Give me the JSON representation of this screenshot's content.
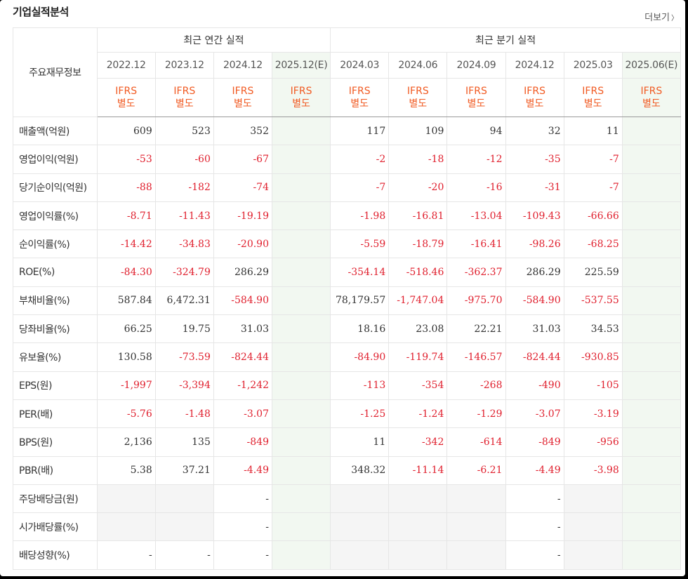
{
  "title": "기업실적분석",
  "more": {
    "label": "더보기",
    "chevron": "〉"
  },
  "table": {
    "row_header_label": "주요재무정보",
    "group_annual": "최근 연간 실적",
    "group_quarter": "최근 분기 실적",
    "periods": [
      "2022.12",
      "2023.12",
      "2024.12",
      "2025.12(E)",
      "2024.03",
      "2024.06",
      "2024.09",
      "2024.12",
      "2025.03",
      "2025.06(E)"
    ],
    "accounting": {
      "line1": "IFRS",
      "line2": "별도"
    },
    "rows": [
      {
        "label": "매출액(억원)",
        "values": [
          "609",
          "523",
          "352",
          "",
          "117",
          "109",
          "94",
          "32",
          "11",
          ""
        ]
      },
      {
        "label": "영업이익(억원)",
        "values": [
          "-53",
          "-60",
          "-67",
          "",
          "-2",
          "-18",
          "-12",
          "-35",
          "-7",
          ""
        ]
      },
      {
        "label": "당기순이익(억원)",
        "values": [
          "-88",
          "-182",
          "-74",
          "",
          "-7",
          "-20",
          "-16",
          "-31",
          "-7",
          ""
        ]
      },
      {
        "label": "영업이익률(%)",
        "values": [
          "-8.71",
          "-11.43",
          "-19.19",
          "",
          "-1.98",
          "-16.81",
          "-13.04",
          "-109.43",
          "-66.66",
          ""
        ]
      },
      {
        "label": "순이익률(%)",
        "values": [
          "-14.42",
          "-34.83",
          "-20.90",
          "",
          "-5.59",
          "-18.79",
          "-16.41",
          "-98.26",
          "-68.25",
          ""
        ]
      },
      {
        "label": "ROE(%)",
        "values": [
          "-84.30",
          "-324.79",
          "286.29",
          "",
          "-354.14",
          "-518.46",
          "-362.37",
          "286.29",
          "225.59",
          ""
        ]
      },
      {
        "label": "부채비율(%)",
        "values": [
          "587.84",
          "6,472.31",
          "-584.90",
          "",
          "78,179.57",
          "-1,747.04",
          "-975.70",
          "-584.90",
          "-537.55",
          ""
        ]
      },
      {
        "label": "당좌비율(%)",
        "values": [
          "66.25",
          "19.75",
          "31.03",
          "",
          "18.16",
          "23.08",
          "22.21",
          "31.03",
          "34.53",
          ""
        ]
      },
      {
        "label": "유보율(%)",
        "values": [
          "130.58",
          "-73.59",
          "-824.44",
          "",
          "-84.90",
          "-119.74",
          "-146.57",
          "-824.44",
          "-930.85",
          ""
        ]
      },
      {
        "label": "EPS(원)",
        "values": [
          "-1,997",
          "-3,394",
          "-1,242",
          "",
          "-113",
          "-354",
          "-268",
          "-490",
          "-105",
          ""
        ]
      },
      {
        "label": "PER(배)",
        "values": [
          "-5.76",
          "-1.48",
          "-3.07",
          "",
          "-1.25",
          "-1.24",
          "-1.29",
          "-3.07",
          "-3.19",
          ""
        ]
      },
      {
        "label": "BPS(원)",
        "values": [
          "2,136",
          "135",
          "-849",
          "",
          "11",
          "-342",
          "-614",
          "-849",
          "-956",
          ""
        ]
      },
      {
        "label": "PBR(배)",
        "values": [
          "5.38",
          "37.21",
          "-4.49",
          "",
          "348.32",
          "-11.14",
          "-6.21",
          "-4.49",
          "-3.98",
          ""
        ]
      },
      {
        "label": "주당배당금(원)",
        "values": [
          "",
          "",
          "-",
          "",
          "",
          "",
          "",
          "-",
          "",
          ""
        ]
      },
      {
        "label": "시가배당률(%)",
        "values": [
          "",
          "",
          "-",
          "",
          "",
          "",
          "",
          "-",
          "",
          ""
        ]
      },
      {
        "label": "배당성향(%)",
        "values": [
          "-",
          "-",
          "-",
          "",
          "",
          "",
          "",
          "-",
          "",
          ""
        ]
      }
    ],
    "empty_cells": [
      [
        13,
        0
      ],
      [
        13,
        1
      ],
      [
        13,
        4
      ],
      [
        13,
        5
      ],
      [
        13,
        6
      ],
      [
        13,
        8
      ],
      [
        14,
        0
      ],
      [
        14,
        1
      ],
      [
        14,
        4
      ],
      [
        14,
        5
      ],
      [
        14,
        6
      ],
      [
        14,
        8
      ],
      [
        15,
        4
      ],
      [
        15,
        5
      ],
      [
        15,
        6
      ],
      [
        15,
        8
      ]
    ]
  },
  "colors": {
    "negative": "#e0202e",
    "accounting": "#f15a22",
    "estimate_bg": "#f2f8f1",
    "estimate_text": "#3c8c3c"
  }
}
